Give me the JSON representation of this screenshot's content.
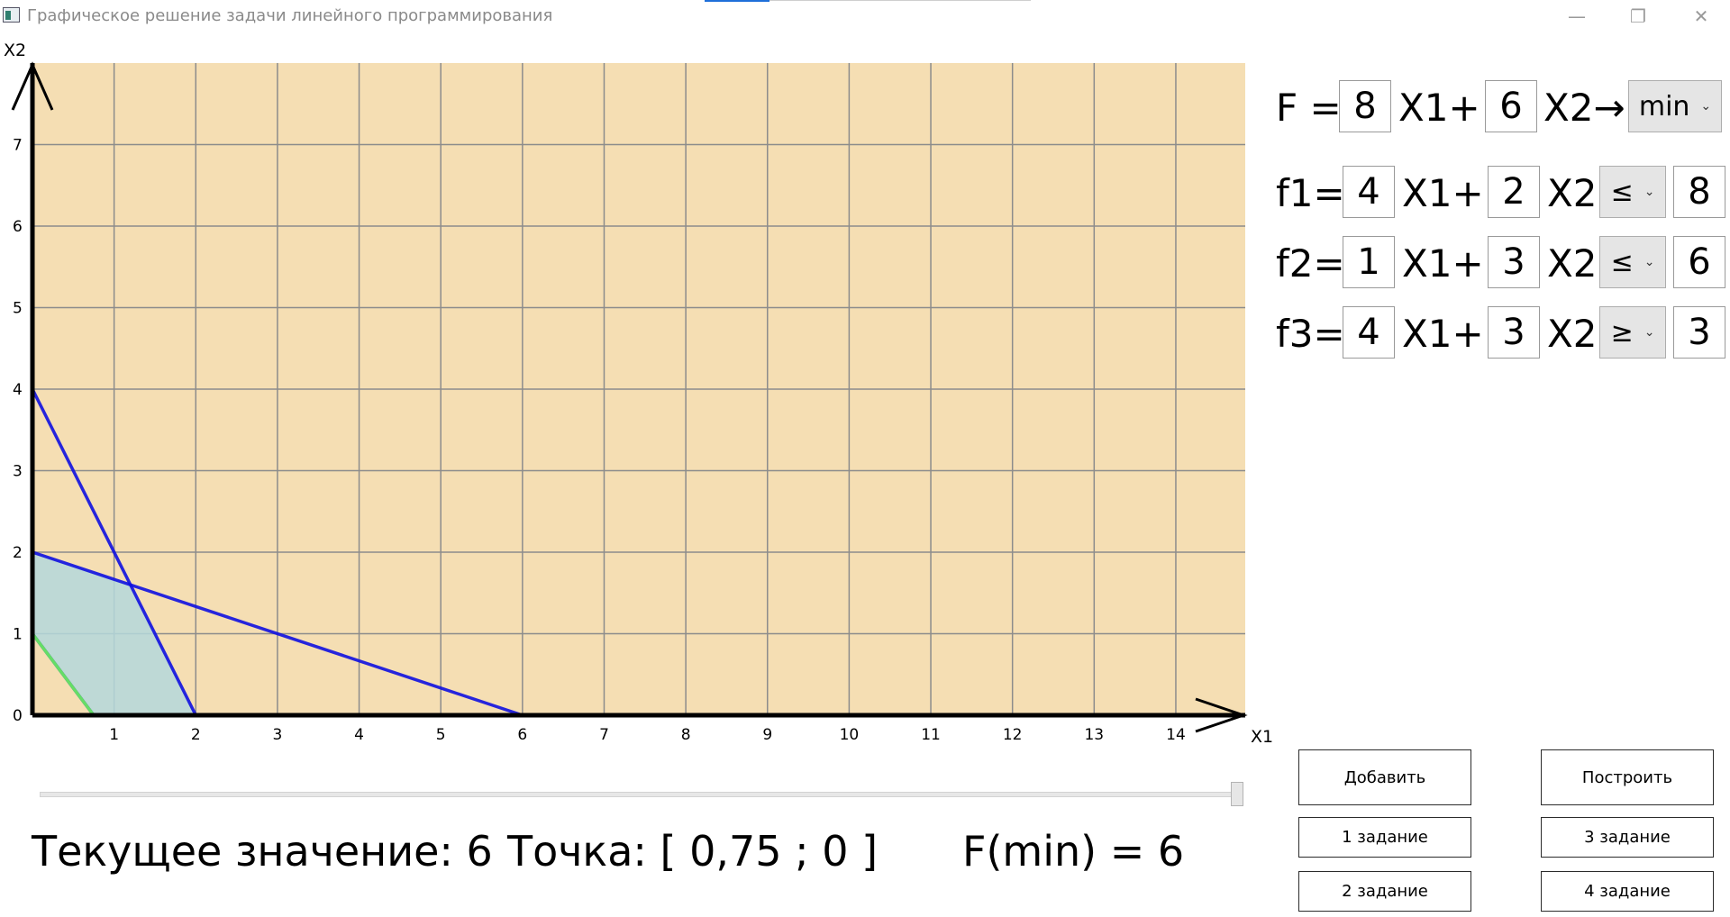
{
  "window": {
    "title": "Графическое решение задачи линейного программирования",
    "controls": {
      "minimize": "—",
      "maximize": "❐",
      "close": "✕"
    }
  },
  "plot": {
    "x_axis_label": "X1",
    "y_axis_label": "X2",
    "x_ticks": [
      "1",
      "2",
      "3",
      "4",
      "5",
      "6",
      "7",
      "8",
      "9",
      "10",
      "11",
      "12",
      "13",
      "14"
    ],
    "y_ticks": [
      "0",
      "1",
      "2",
      "3",
      "4",
      "5",
      "6",
      "7"
    ],
    "background_color": "#f5deb3",
    "grid_color": "#8c8c8c",
    "constraint_line_color": "#1010e0",
    "objective_line_color": "#66dd66",
    "feasible_fill_color": "#b4d8dc",
    "x_range": [
      0,
      14.85
    ],
    "y_range": [
      0,
      8
    ],
    "constraint_lines": [
      {
        "name": "f1",
        "from": [
          0,
          4
        ],
        "to": [
          2,
          0
        ]
      },
      {
        "name": "f2",
        "from": [
          0,
          2
        ],
        "to": [
          6,
          0
        ]
      },
      {
        "name": "f3",
        "from": [
          0,
          1
        ],
        "to": [
          0.75,
          0
        ]
      }
    ],
    "feasible_region": [
      [
        0,
        1
      ],
      [
        0,
        2
      ],
      [
        1.2,
        1.6
      ],
      [
        2,
        0
      ],
      [
        0.75,
        0
      ]
    ],
    "objective_line": {
      "from": [
        0,
        1
      ],
      "to": [
        0.75,
        0
      ]
    }
  },
  "slider": {
    "value_fraction": 1.0
  },
  "status": {
    "current_value": "Текущее значение: 6",
    "point": "Точка: [ 0,75 ; 0 ]",
    "result": "F(min) = 6"
  },
  "objective": {
    "prefix": "F =",
    "c1": "8",
    "x1_label": "X1+",
    "c2": "6",
    "x2_label": "X2→",
    "direction": "min"
  },
  "constraints": [
    {
      "label": "f1=",
      "a1": "4",
      "x1_label": "X1+",
      "a2": "2",
      "x2_label": "X2",
      "sign": "≤",
      "b": "8"
    },
    {
      "label": "f2=",
      "a1": "1",
      "x1_label": "X1+",
      "a2": "3",
      "x2_label": "X2",
      "sign": "≤",
      "b": "6"
    },
    {
      "label": "f3=",
      "a1": "4",
      "x1_label": "X1+",
      "a2": "3",
      "x2_label": "X2",
      "sign": "≥",
      "b": "3"
    }
  ],
  "buttons": {
    "add": "Добавить",
    "build": "Построить",
    "task1": "1 задание",
    "task2": "2 задание",
    "task3": "3 задание",
    "task4": "4 задание"
  }
}
